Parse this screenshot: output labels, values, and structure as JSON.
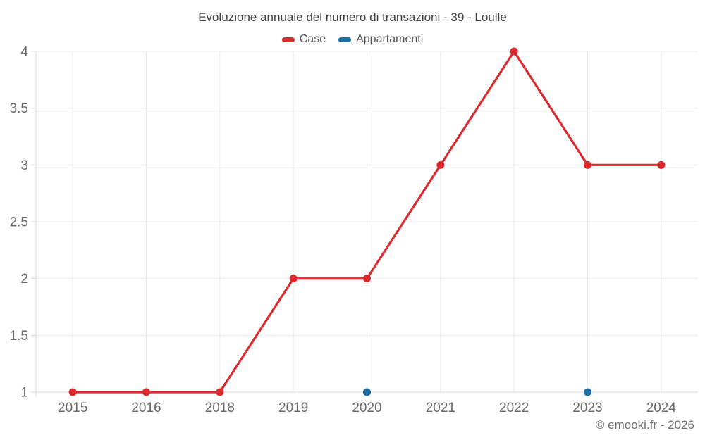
{
  "page": {
    "copyright": "© emooki.fr - 2026"
  },
  "legend": {
    "items": [
      {
        "label": "Case",
        "color": "#dc2a2e"
      },
      {
        "label": "Appartamenti",
        "color": "#1c6ea4"
      }
    ]
  },
  "chart_data": {
    "type": "line",
    "title": "Evoluzione annuale del numero di transazioni - 39 - Loulle",
    "categories": [
      "2015",
      "2016",
      "2018",
      "2019",
      "2020",
      "2021",
      "2022",
      "2023",
      "2024"
    ],
    "series": [
      {
        "name": "Case",
        "color": "#dc2a2e",
        "values": [
          1,
          1,
          1,
          2,
          2,
          3,
          4,
          3,
          3
        ]
      },
      {
        "name": "Appartamenti",
        "color": "#1c6ea4",
        "values": [
          null,
          null,
          null,
          null,
          1,
          null,
          null,
          1,
          null
        ]
      }
    ],
    "xlabel": "",
    "ylabel": "",
    "ylim": [
      1,
      4
    ],
    "yticks": [
      1,
      1.5,
      2,
      2.5,
      3,
      3.5,
      4
    ],
    "grid": true,
    "legend_position": "top",
    "colors": {
      "grid": "#e9e9e9",
      "axis": "#d9d9d9",
      "tick_label": "#696969",
      "title": "#424242",
      "background": "#ffffff"
    }
  }
}
